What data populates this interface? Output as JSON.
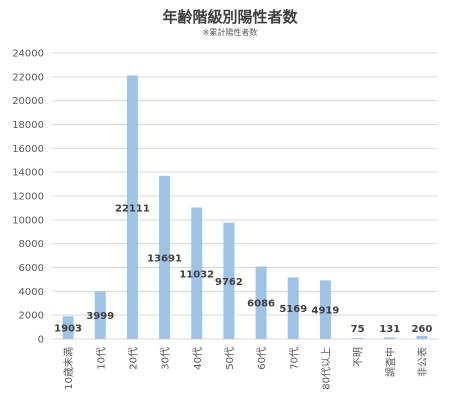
{
  "chart_data": {
    "type": "bar",
    "title": "年齢階級別陽性者数",
    "subtitle": "※累計陽性者数",
    "categories": [
      "10歳未満",
      "10代",
      "20代",
      "30代",
      "40代",
      "50代",
      "60代",
      "70代",
      "80代以上",
      "不明",
      "調査中",
      "非公表"
    ],
    "values": [
      1903,
      3999,
      22111,
      13691,
      11032,
      9762,
      6086,
      5169,
      4919,
      75,
      131,
      260
    ],
    "ylim": [
      0,
      24000
    ],
    "yticks": [
      0,
      2000,
      4000,
      6000,
      8000,
      10000,
      12000,
      14000,
      16000,
      18000,
      20000,
      22000,
      24000
    ],
    "grid": true,
    "bar_color": "#9dc3e6"
  }
}
